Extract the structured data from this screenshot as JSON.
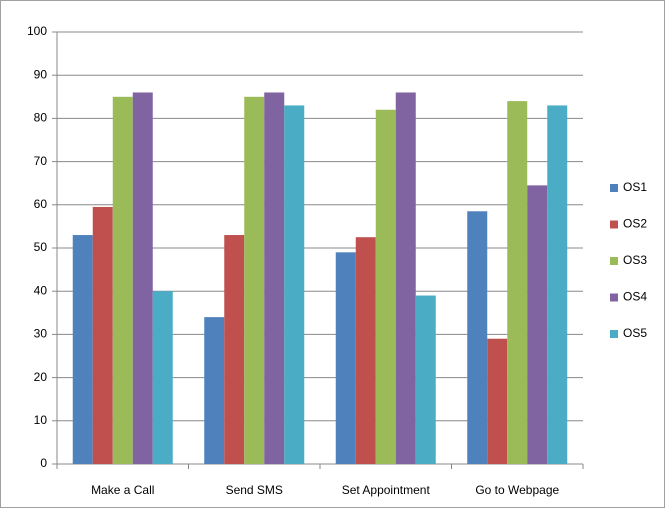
{
  "chart_data": {
    "type": "bar",
    "categories": [
      "Make a Call",
      "Send SMS",
      "Set Appointment",
      "Go to Webpage"
    ],
    "series": [
      {
        "name": "OS1",
        "color": "#4f81bd",
        "values": [
          53,
          34,
          49,
          58.5
        ]
      },
      {
        "name": "OS2",
        "color": "#c0504d",
        "values": [
          59.5,
          53,
          52.5,
          29
        ]
      },
      {
        "name": "OS3",
        "color": "#9bbb59",
        "values": [
          85,
          85,
          82,
          84
        ]
      },
      {
        "name": "OS4",
        "color": "#8064a2",
        "values": [
          86,
          86,
          86,
          64.5
        ]
      },
      {
        "name": "OS5",
        "color": "#4bacc6",
        "values": [
          40,
          83,
          39,
          83
        ]
      }
    ],
    "ylim": [
      0,
      100
    ],
    "yticks": [
      0,
      10,
      20,
      30,
      40,
      50,
      60,
      70,
      80,
      90,
      100
    ],
    "grid": true,
    "legend": "right"
  }
}
